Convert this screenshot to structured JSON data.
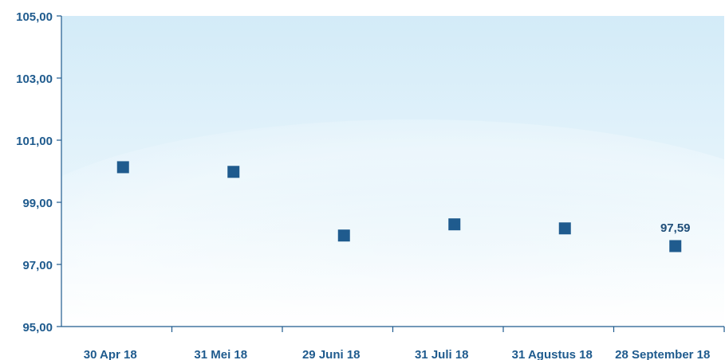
{
  "chart_data": {
    "type": "scatter",
    "title": "",
    "xlabel": "",
    "ylabel": "",
    "categories": [
      "30 Apr 18",
      "31 Mei 18",
      "29 Juni 18",
      "31 Juli 18",
      "31 Agustus 18",
      "28 September 18"
    ],
    "values": [
      100.13,
      99.98,
      97.93,
      98.29,
      98.16,
      97.59
    ],
    "ylim": [
      95,
      105
    ],
    "yticks": [
      "95,00",
      "97,00",
      "99,00",
      "101,00",
      "103,00",
      "105,00"
    ],
    "data_labels": [
      {
        "index": 5,
        "text": "97,59"
      }
    ],
    "grid": false,
    "colors": {
      "marker": "#1f5b8e",
      "axis": "#1f5b8e",
      "background_top": "#d3ebf8",
      "background_bottom": "#ffffff"
    }
  }
}
